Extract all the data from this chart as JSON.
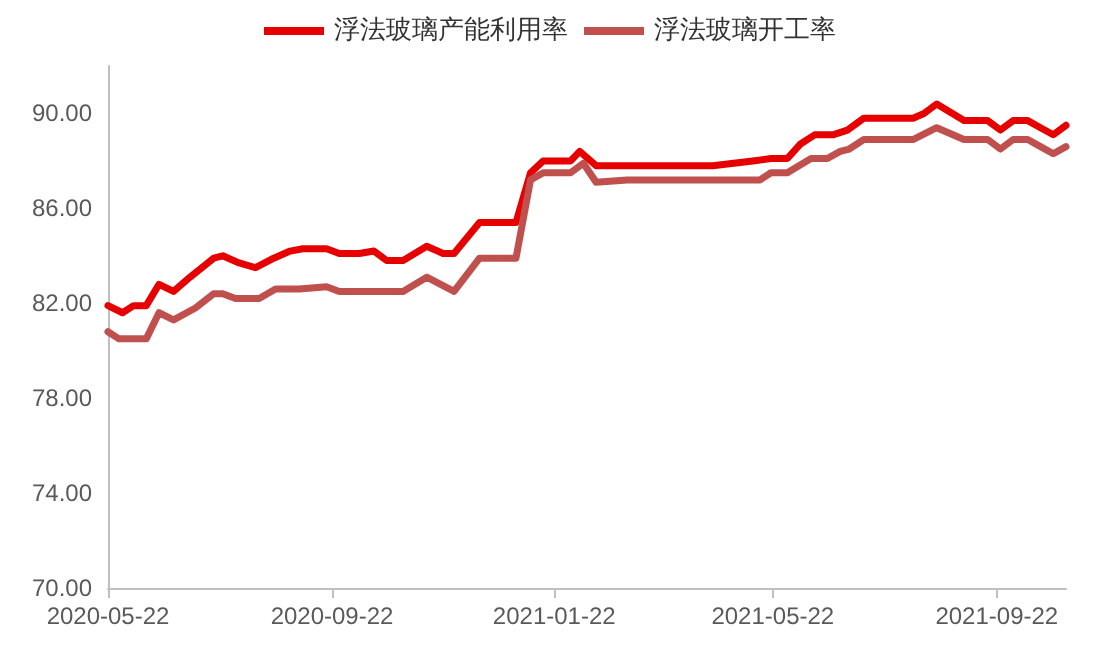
{
  "chart_data": {
    "type": "line",
    "legend": "top",
    "grid": false,
    "marker": "none",
    "xlim": [
      "2020-05-22",
      "2021-10-30"
    ],
    "xticks": [
      "2020-05-22",
      "2020-09-22",
      "2021-01-22",
      "2021-05-22",
      "2021-09-22"
    ],
    "ylim": [
      70,
      92
    ],
    "yticks": [
      {
        "value": 70,
        "label": "70.00"
      },
      {
        "value": 74,
        "label": "74.00"
      },
      {
        "value": 78,
        "label": "78.00"
      },
      {
        "value": 82,
        "label": "82.00"
      },
      {
        "value": 86,
        "label": "86.00"
      },
      {
        "value": 90,
        "label": "90.00"
      }
    ],
    "series": [
      {
        "name": "浮法玻璃产能利用率",
        "color": "#e60000",
        "x": [
          "2020-05-22",
          "2020-05-30",
          "2020-06-05",
          "2020-06-12",
          "2020-06-19",
          "2020-06-27",
          "2020-07-06",
          "2020-07-19",
          "2020-07-24",
          "2020-08-02",
          "2020-08-11",
          "2020-08-21",
          "2020-08-30",
          "2020-09-06",
          "2020-09-19",
          "2020-09-26",
          "2020-10-07",
          "2020-10-15",
          "2020-10-22",
          "2020-10-31",
          "2020-11-13",
          "2020-11-22",
          "2020-11-28",
          "2020-12-12",
          "2021-01-01",
          "2021-01-09",
          "2021-01-16",
          "2021-01-31",
          "2021-02-05",
          "2021-02-14",
          "2021-04-19",
          "2021-05-11",
          "2021-05-21",
          "2021-05-30",
          "2021-06-06",
          "2021-06-14",
          "2021-06-24",
          "2021-07-02",
          "2021-07-11",
          "2021-08-07",
          "2021-08-13",
          "2021-08-20",
          "2021-09-04",
          "2021-09-17",
          "2021-09-24",
          "2021-10-01",
          "2021-10-09",
          "2021-10-16",
          "2021-10-23",
          "2021-10-30"
        ],
        "values": [
          81.9,
          81.6,
          81.9,
          81.9,
          82.8,
          82.5,
          83.1,
          83.9,
          84.0,
          83.7,
          83.5,
          83.9,
          84.2,
          84.3,
          84.3,
          84.1,
          84.1,
          84.2,
          83.8,
          83.8,
          84.4,
          84.1,
          84.1,
          85.4,
          85.4,
          87.5,
          88.0,
          88.0,
          88.4,
          87.8,
          87.8,
          88.0,
          88.1,
          88.1,
          88.7,
          89.1,
          89.1,
          89.3,
          89.8,
          89.8,
          90.0,
          90.4,
          89.7,
          89.7,
          89.3,
          89.7,
          89.7,
          89.4,
          89.1,
          89.5
        ]
      },
      {
        "name": "浮法玻璃开工率",
        "color": "#c0504d",
        "x": [
          "2020-05-22",
          "2020-05-28",
          "2020-06-12",
          "2020-06-19",
          "2020-06-27",
          "2020-07-09",
          "2020-07-19",
          "2020-07-24",
          "2020-07-31",
          "2020-08-13",
          "2020-08-22",
          "2020-09-04",
          "2020-09-19",
          "2020-09-26",
          "2020-10-31",
          "2020-11-13",
          "2020-11-28",
          "2020-12-12",
          "2021-01-01",
          "2021-01-09",
          "2021-01-16",
          "2021-01-31",
          "2021-02-07",
          "2021-02-14",
          "2021-03-03",
          "2021-04-19",
          "2021-05-15",
          "2021-05-21",
          "2021-05-30",
          "2021-06-12",
          "2021-06-21",
          "2021-06-28",
          "2021-07-03",
          "2021-07-11",
          "2021-08-07",
          "2021-08-20",
          "2021-09-04",
          "2021-09-17",
          "2021-09-24",
          "2021-10-01",
          "2021-10-09",
          "2021-10-16",
          "2021-10-23",
          "2021-10-30"
        ],
        "values": [
          80.8,
          80.5,
          80.5,
          81.6,
          81.3,
          81.8,
          82.4,
          82.4,
          82.2,
          82.2,
          82.6,
          82.6,
          82.7,
          82.5,
          82.5,
          83.1,
          82.5,
          83.9,
          83.9,
          87.2,
          87.5,
          87.5,
          87.9,
          87.1,
          87.2,
          87.2,
          87.2,
          87.5,
          87.5,
          88.1,
          88.1,
          88.4,
          88.5,
          88.9,
          88.9,
          89.4,
          88.9,
          88.9,
          88.5,
          88.9,
          88.9,
          88.6,
          88.3,
          88.6
        ]
      }
    ]
  }
}
